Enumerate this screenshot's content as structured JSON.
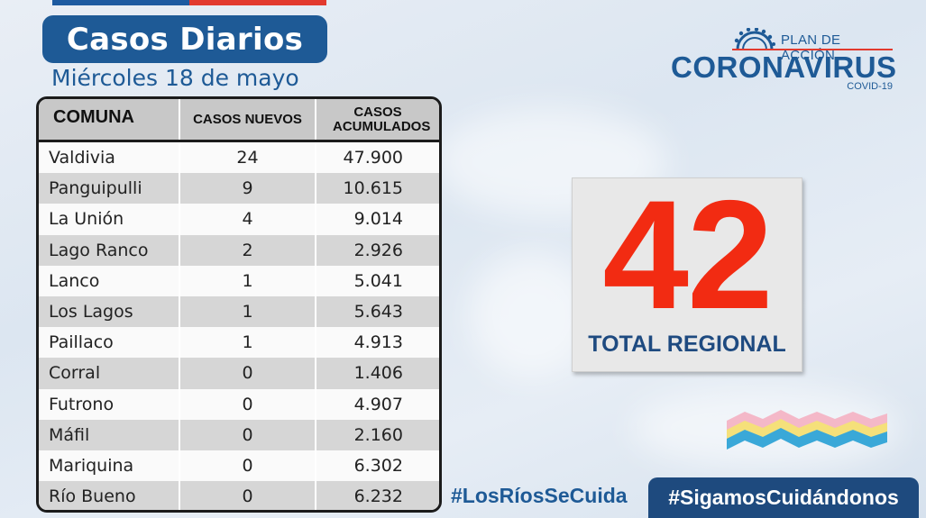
{
  "header": {
    "title": "Casos Diarios",
    "date": "Miércoles 18 de mayo"
  },
  "logo": {
    "plan": "PLAN DE ACCIÓN",
    "main": "CORONAVIRUS",
    "sub": "COVID-19"
  },
  "table": {
    "headers": {
      "comuna": "COMUNA",
      "nuevos": "CASOS NUEVOS",
      "acumulados": "CASOS ACUMULADOS"
    },
    "rows": [
      {
        "comuna": "Valdivia",
        "nuevos": "24",
        "acumulados": "47.900"
      },
      {
        "comuna": "Panguipulli",
        "nuevos": "9",
        "acumulados": "10.615"
      },
      {
        "comuna": "La Unión",
        "nuevos": "4",
        "acumulados": "9.014"
      },
      {
        "comuna": "Lago Ranco",
        "nuevos": "2",
        "acumulados": "2.926"
      },
      {
        "comuna": "Lanco",
        "nuevos": "1",
        "acumulados": "5.041"
      },
      {
        "comuna": "Los Lagos",
        "nuevos": "1",
        "acumulados": "5.643"
      },
      {
        "comuna": "Paillaco",
        "nuevos": "1",
        "acumulados": "4.913"
      },
      {
        "comuna": "Corral",
        "nuevos": "0",
        "acumulados": "1.406"
      },
      {
        "comuna": "Futrono",
        "nuevos": "0",
        "acumulados": "4.907"
      },
      {
        "comuna": "Máfil",
        "nuevos": "0",
        "acumulados": "2.160"
      },
      {
        "comuna": "Mariquina",
        "nuevos": "0",
        "acumulados": "6.302"
      },
      {
        "comuna": "Río Bueno",
        "nuevos": "0",
        "acumulados": "6.232"
      }
    ]
  },
  "total": {
    "value": "42",
    "label": "TOTAL REGIONAL"
  },
  "footer": {
    "hashtag_left": "#LosRíosSeCuida",
    "hashtag_right": "#SigamosCuidándonos"
  },
  "colors": {
    "brand_blue": "#1e5a96",
    "accent_red": "#e23a2e",
    "total_red": "#f22b12"
  }
}
